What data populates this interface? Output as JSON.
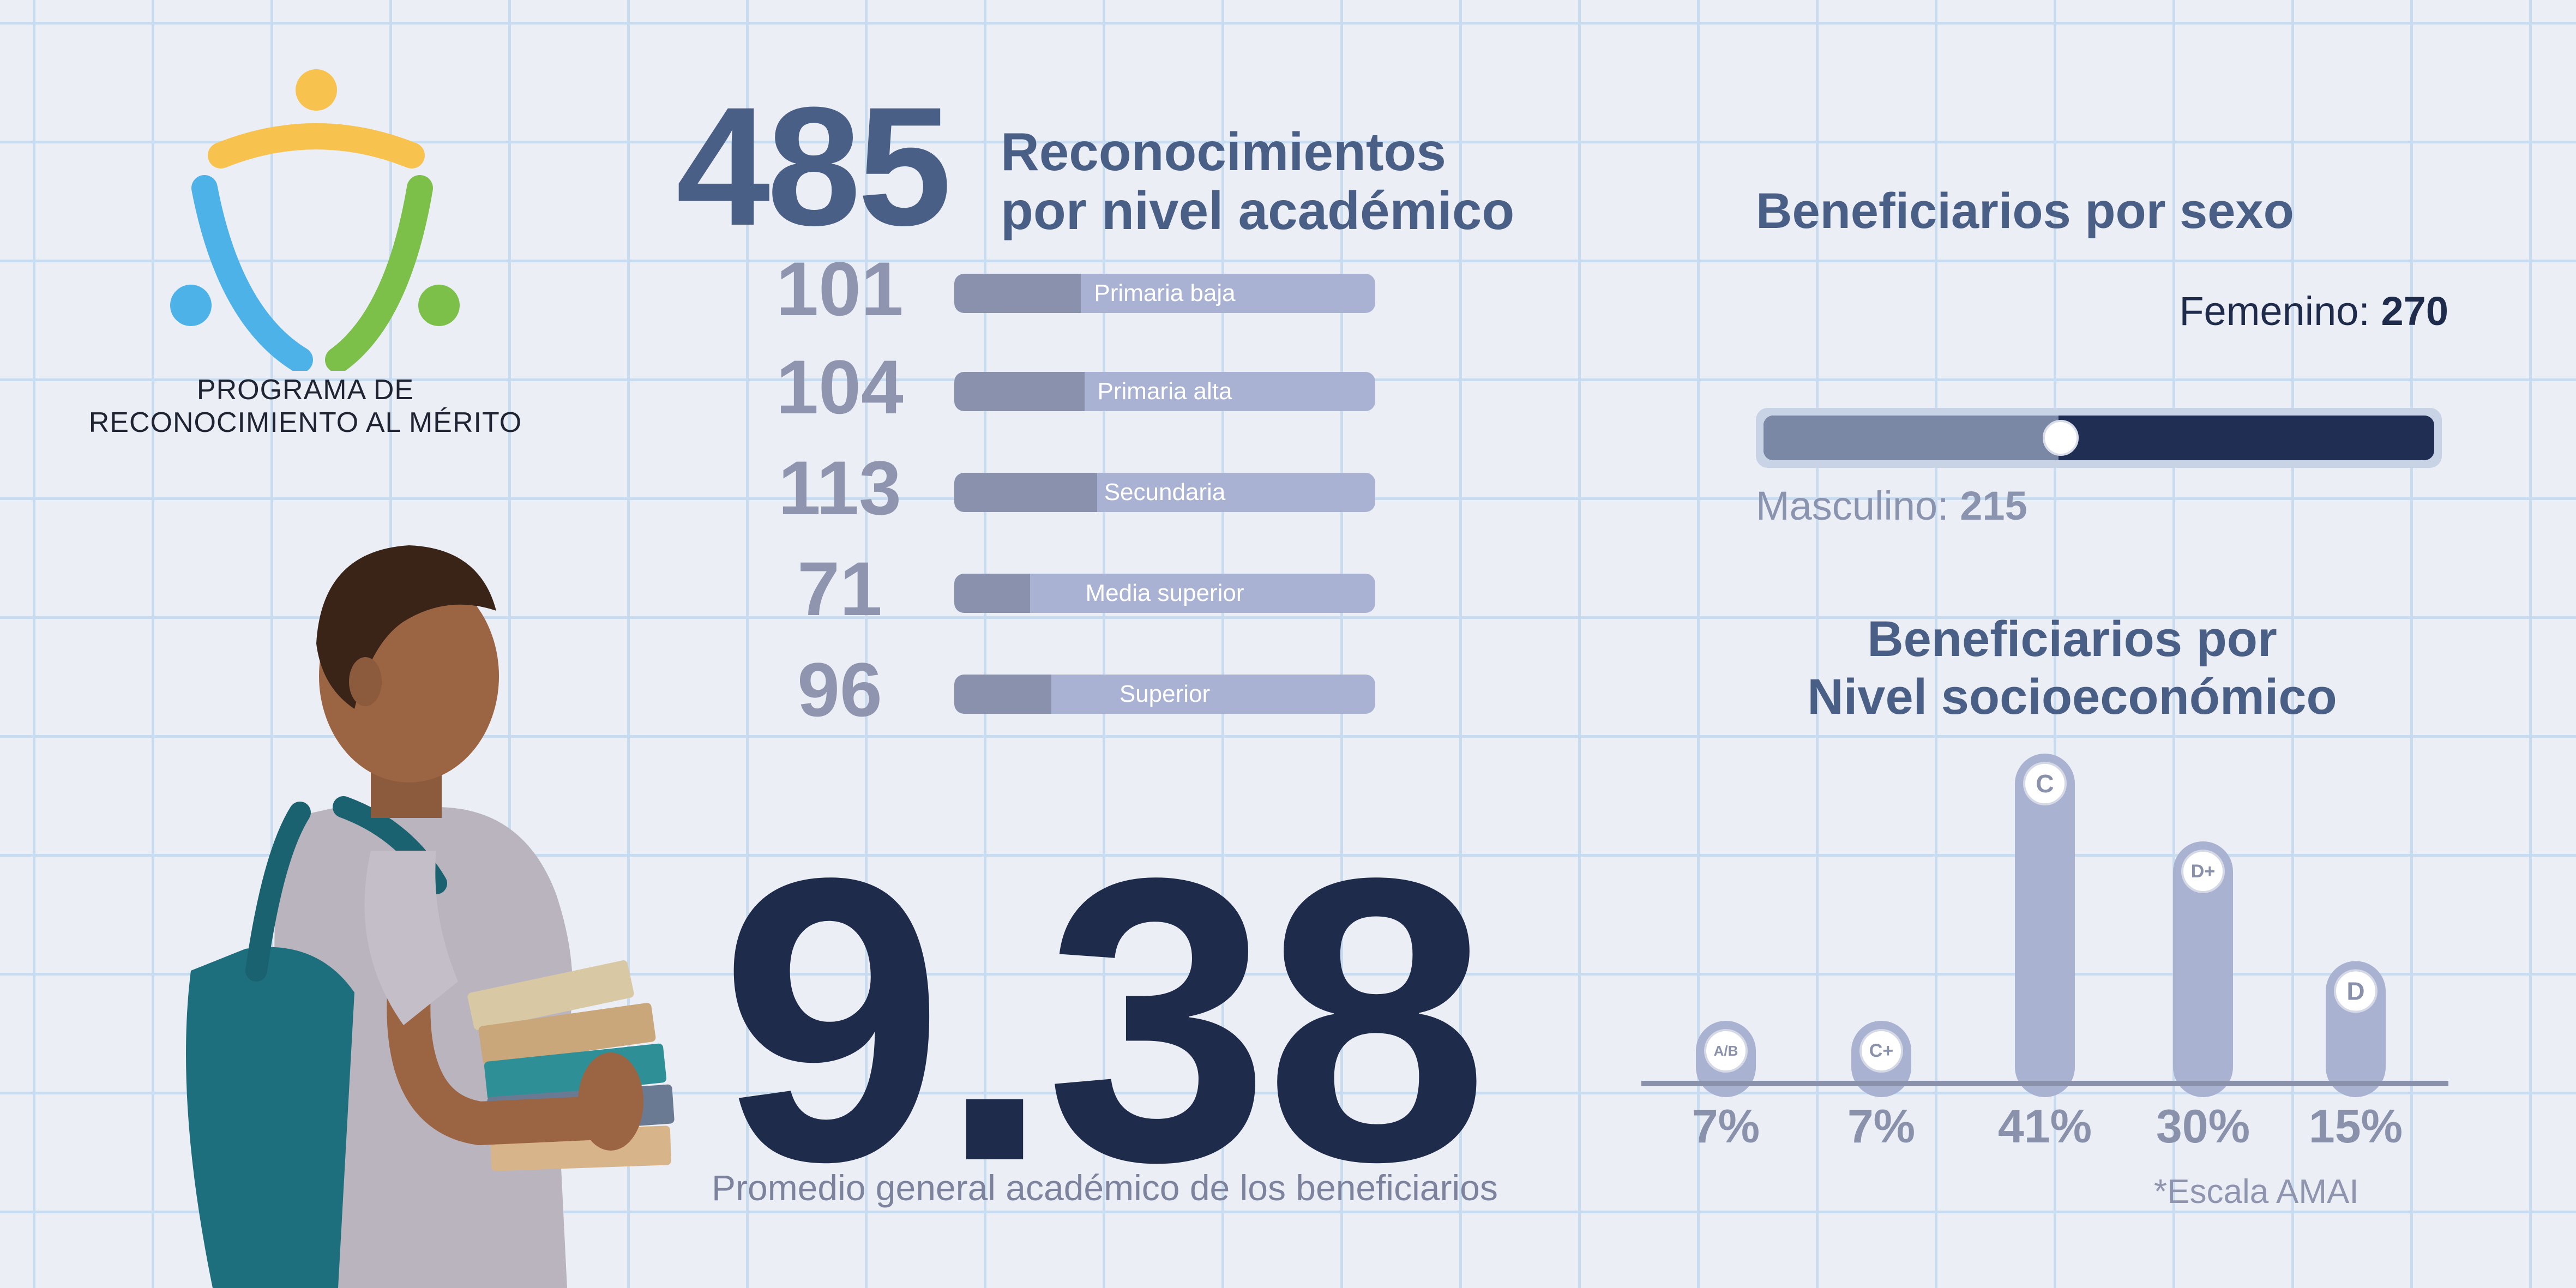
{
  "logo": {
    "line1": "PROGRAMA DE",
    "line2": "RECONOCIMIENTO AL MÉRITO"
  },
  "totals": {
    "count": "485",
    "label_line1": "Reconocimientos",
    "label_line2": "por nivel académico"
  },
  "levels": [
    {
      "value": "101",
      "label": "Primaria baja",
      "share": 0.3
    },
    {
      "value": "104",
      "label": "Primaria alta",
      "share": 0.31
    },
    {
      "value": "113",
      "label": "Secundaria",
      "share": 0.34
    },
    {
      "value": "71",
      "label": "Media superior",
      "share": 0.18
    },
    {
      "value": "96",
      "label": "Superior",
      "share": 0.23
    }
  ],
  "average": {
    "value": "9.38",
    "label": "Promedio general académico de los beneficiarios"
  },
  "sex": {
    "title": "Beneficiarios por sexo",
    "female_label": "Femenino:",
    "female_value": "270",
    "male_label": "Masculino:",
    "male_value": "215",
    "male_share": 0.44
  },
  "chart_data": {
    "type": "bar",
    "title_line1": "Beneficiarios por",
    "title_line2": "Nivel socioeconómico",
    "categories": [
      "A/B",
      "C+",
      "C",
      "D+",
      "D"
    ],
    "values": [
      7,
      7,
      41,
      30,
      15
    ],
    "value_labels": [
      "7%",
      "7%",
      "41%",
      "30%",
      "15%"
    ],
    "ylim": [
      0,
      41
    ],
    "footnote": "*Escala AMAI",
    "colors": {
      "bar": "#aab2d1",
      "baseline": "#8a91ab",
      "value_text": "#8a91ab"
    }
  }
}
